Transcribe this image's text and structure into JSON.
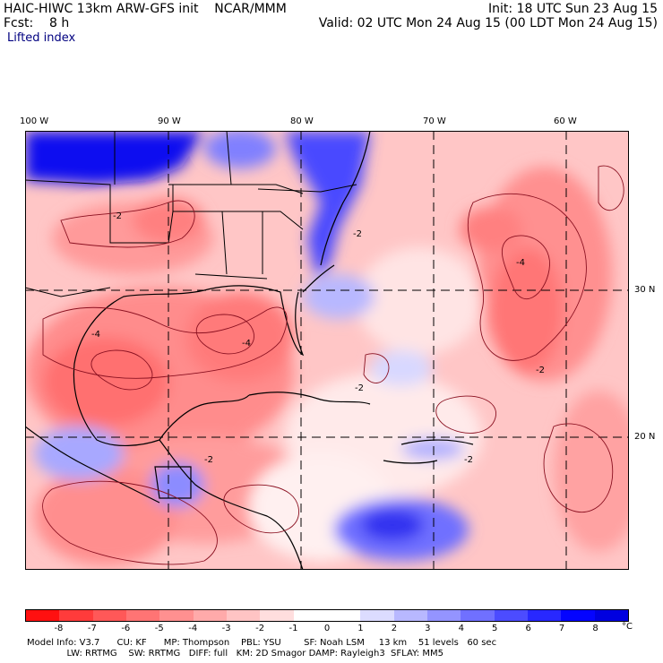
{
  "header": {
    "title": "HAIC-HIWC 13km ARW-GFS init    NCAR/MMM",
    "fcst": "Fcst:    8 h",
    "field": "Lifted index",
    "init": "Init: 18 UTC Sun 23 Aug 15",
    "valid": "Valid: 02 UTC Mon 24 Aug 15 (00 LDT Mon 24 Aug 15)"
  },
  "map": {
    "lon_labels": [
      "100 W",
      "90 W",
      "80 W",
      "70 W",
      "60 W"
    ],
    "lat_labels": [
      "30 N",
      "20 N"
    ],
    "contour_labels": [
      "-2",
      "-2",
      "-4",
      "-4",
      "-2",
      "-2",
      "-4",
      "-2",
      "-2"
    ]
  },
  "colorbar": {
    "ticks": [
      "-8",
      "-7",
      "-6",
      "-5",
      "-4",
      "-3",
      "-2",
      "-1",
      "0",
      "1",
      "2",
      "3",
      "4",
      "5",
      "6",
      "7",
      "8"
    ],
    "unit": "°C",
    "colors": [
      "#ff1010",
      "#ff3b3b",
      "#ff5858",
      "#ff7474",
      "#ff9090",
      "#ffaaaa",
      "#ffc4c4",
      "#ffdede",
      "#ffffff",
      "#ffffff",
      "#dcdcff",
      "#b8b8ff",
      "#9494ff",
      "#7070ff",
      "#4c4cff",
      "#2828ff",
      "#0404ff",
      "#0000e0"
    ]
  },
  "footer": {
    "line1": "Model Info: V3.7      CU: KF      MP: Thompson    PBL: YSU        SF: Noah LSM     13 km    51 levels   60 sec",
    "line2": "              LW: RRTMG    SW: RRTMG   DIFF: full   KM: 2D Smagor DAMP: Rayleigh3  SFLAY: MM5"
  }
}
